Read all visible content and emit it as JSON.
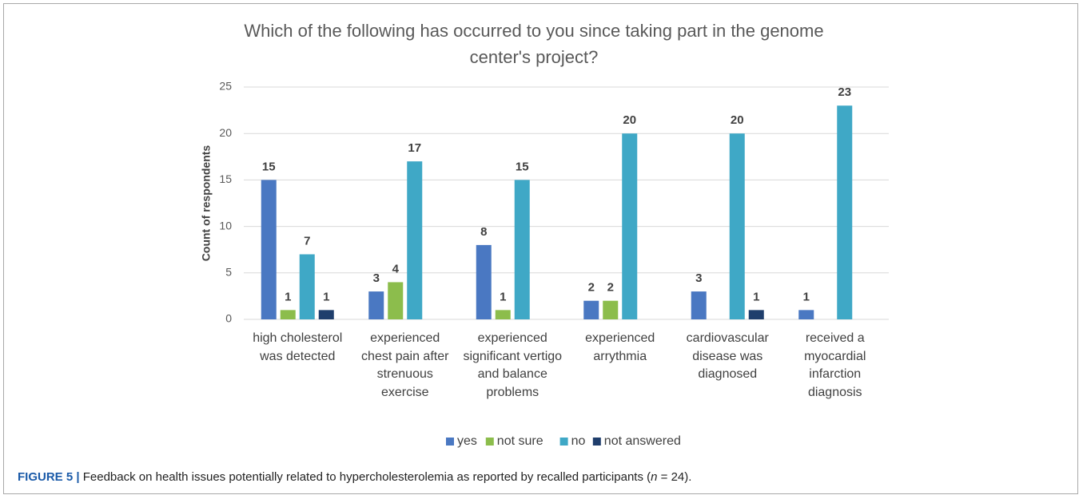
{
  "chart_data": {
    "type": "bar",
    "title": "Which of the following has occurred to you since taking part in the genome center's project?",
    "y_label": "Count of respondents",
    "categories": [
      "high cholesterol was detected",
      "experienced chest pain after strenuous exercise",
      "experienced significant vertigo and balance problems",
      "experienced arrythmia",
      "cardiovascular disease was diagnosed",
      "received a myocardial infarction diagnosis"
    ],
    "series": [
      {
        "name": "yes",
        "color": "#4a78c2",
        "values": [
          15,
          3,
          8,
          2,
          3,
          1
        ]
      },
      {
        "name": "not sure",
        "color": "#8cbd4c",
        "values": [
          1,
          4,
          1,
          2,
          null,
          null
        ]
      },
      {
        "name": "no",
        "color": "#3fa8c6",
        "values": [
          7,
          17,
          15,
          20,
          20,
          23
        ]
      },
      {
        "name": "not answered",
        "color": "#1f3e6c",
        "values": [
          1,
          null,
          null,
          null,
          1,
          null
        ]
      }
    ],
    "ylim": [
      0,
      25
    ],
    "yticks": [
      0,
      5,
      10,
      15,
      20,
      25
    ],
    "grid": true,
    "legend": "bottom"
  },
  "caption": {
    "label": "FIGURE 5 |",
    "text": "Feedback on health issues potentially related to hypercholesterolemia as reported by recalled participants (",
    "italic": "n",
    "tail": " = 24)."
  }
}
